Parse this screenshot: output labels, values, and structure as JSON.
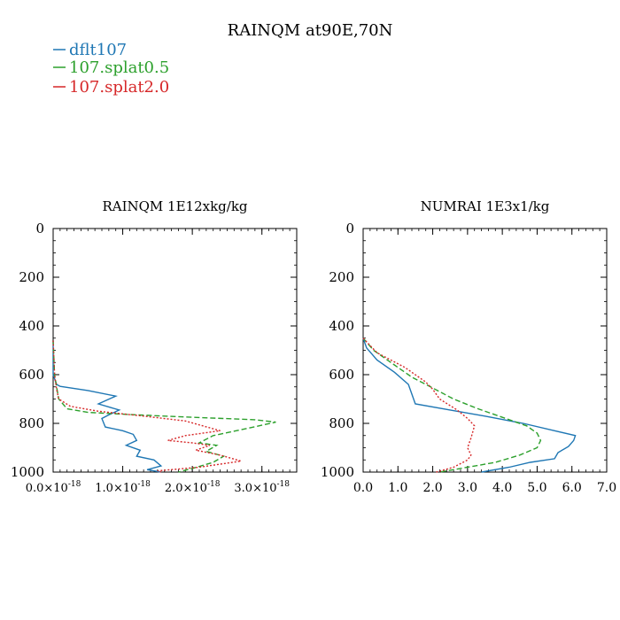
{
  "figure": {
    "title": "RAINQM at90E,70N"
  },
  "legend": [
    {
      "label": "dflt107",
      "color": "#1f77b4"
    },
    {
      "label": "107.splat0.5",
      "color": "#2ca02c"
    },
    {
      "label": "107.splat2.0",
      "color": "#d62728"
    }
  ],
  "chart_data": [
    {
      "type": "line",
      "title": "RAINQM  1E12xkg/kg",
      "xlim": [
        0.0,
        3.5
      ],
      "ylim": [
        0,
        1000
      ],
      "y_inverted": true,
      "xticks": [
        {
          "value": 0.0,
          "mant": "0.0",
          "base": "×10",
          "exp": "-18"
        },
        {
          "value": 1.0,
          "mant": "1.0",
          "base": "×10",
          "exp": "-18"
        },
        {
          "value": 2.0,
          "mant": "2.0",
          "base": "×10",
          "exp": "-18"
        },
        {
          "value": 3.0,
          "mant": "3.0",
          "base": "×10",
          "exp": "-18"
        }
      ],
      "yticks": [
        "0",
        "200",
        "400",
        "600",
        "800",
        "1000"
      ],
      "series": [
        {
          "name": "dflt107",
          "color": "#1f77b4",
          "dash": "solid",
          "points": [
            [
              0.0,
              460
            ],
            [
              0.0,
              600
            ],
            [
              0.05,
              640
            ],
            [
              0.1,
              648
            ],
            [
              0.5,
              665
            ],
            [
              0.9,
              688
            ],
            [
              0.65,
              720
            ],
            [
              0.95,
              745
            ],
            [
              0.8,
              765
            ],
            [
              0.7,
              780
            ],
            [
              0.75,
              815
            ],
            [
              1.0,
              830
            ],
            [
              1.15,
              845
            ],
            [
              1.2,
              870
            ],
            [
              1.05,
              890
            ],
            [
              1.25,
              910
            ],
            [
              1.2,
              935
            ],
            [
              1.45,
              950
            ],
            [
              1.55,
              975
            ],
            [
              1.35,
              990
            ],
            [
              1.55,
              1000
            ]
          ]
        },
        {
          "name": "107.splat0.5",
          "color": "#2ca02c",
          "dash": "dashed",
          "points": [
            [
              0.0,
              460
            ],
            [
              0.02,
              600
            ],
            [
              0.05,
              650
            ],
            [
              0.08,
              700
            ],
            [
              0.2,
              740
            ],
            [
              0.5,
              755
            ],
            [
              1.2,
              765
            ],
            [
              2.0,
              775
            ],
            [
              2.9,
              785
            ],
            [
              3.2,
              795
            ],
            [
              2.8,
              820
            ],
            [
              2.3,
              850
            ],
            [
              2.1,
              880
            ],
            [
              2.35,
              890
            ],
            [
              2.2,
              915
            ],
            [
              2.45,
              935
            ],
            [
              2.3,
              960
            ],
            [
              2.0,
              985
            ],
            [
              1.8,
              1000
            ]
          ]
        },
        {
          "name": "107.splat2.0",
          "color": "#d62728",
          "dash": "dotted",
          "points": [
            [
              0.0,
              460
            ],
            [
              0.02,
              600
            ],
            [
              0.05,
              660
            ],
            [
              0.08,
              700
            ],
            [
              0.25,
              730
            ],
            [
              0.65,
              750
            ],
            [
              1.3,
              770
            ],
            [
              1.9,
              790
            ],
            [
              2.4,
              830
            ],
            [
              1.9,
              850
            ],
            [
              1.65,
              870
            ],
            [
              2.0,
              880
            ],
            [
              2.25,
              890
            ],
            [
              2.05,
              910
            ],
            [
              2.4,
              930
            ],
            [
              2.7,
              955
            ],
            [
              2.1,
              980
            ],
            [
              1.5,
              995
            ],
            [
              1.55,
              1000
            ]
          ]
        }
      ]
    },
    {
      "type": "line",
      "title": "NUMRAI  1E3x1/kg",
      "xlim": [
        0.0,
        7.0
      ],
      "ylim": [
        0,
        1000
      ],
      "y_inverted": true,
      "xticks": [
        {
          "value": 0.0,
          "mant": "0.0"
        },
        {
          "value": 1.0,
          "mant": "1.0"
        },
        {
          "value": 2.0,
          "mant": "2.0"
        },
        {
          "value": 3.0,
          "mant": "3.0"
        },
        {
          "value": 4.0,
          "mant": "4.0"
        },
        {
          "value": 5.0,
          "mant": "5.0"
        },
        {
          "value": 6.0,
          "mant": "6.0"
        },
        {
          "value": 7.0,
          "mant": "7.0"
        }
      ],
      "yticks": [
        "0",
        "200",
        "400",
        "600",
        "800",
        "1000"
      ],
      "series": [
        {
          "name": "dflt107",
          "color": "#1f77b4",
          "dash": "solid",
          "points": [
            [
              0.0,
              450
            ],
            [
              0.1,
              490
            ],
            [
              0.4,
              540
            ],
            [
              0.9,
              590
            ],
            [
              1.3,
              640
            ],
            [
              1.4,
              680
            ],
            [
              1.5,
              720
            ],
            [
              2.5,
              745
            ],
            [
              3.5,
              770
            ],
            [
              4.6,
              800
            ],
            [
              5.5,
              830
            ],
            [
              6.1,
              850
            ],
            [
              6.05,
              870
            ],
            [
              5.9,
              895
            ],
            [
              5.6,
              920
            ],
            [
              5.5,
              945
            ],
            [
              4.8,
              960
            ],
            [
              4.2,
              980
            ],
            [
              3.4,
              1000
            ]
          ]
        },
        {
          "name": "107.splat0.5",
          "color": "#2ca02c",
          "dash": "dashed",
          "points": [
            [
              0.0,
              450
            ],
            [
              0.3,
              500
            ],
            [
              0.8,
              550
            ],
            [
              1.4,
              610
            ],
            [
              2.0,
              655
            ],
            [
              2.6,
              700
            ],
            [
              3.3,
              740
            ],
            [
              4.1,
              780
            ],
            [
              4.7,
              810
            ],
            [
              5.0,
              840
            ],
            [
              5.1,
              870
            ],
            [
              5.0,
              900
            ],
            [
              4.5,
              930
            ],
            [
              3.8,
              960
            ],
            [
              2.8,
              985
            ],
            [
              2.2,
              1000
            ]
          ]
        },
        {
          "name": "107.splat2.0",
          "color": "#d62728",
          "dash": "dotted",
          "points": [
            [
              0.0,
              450
            ],
            [
              0.4,
              510
            ],
            [
              1.2,
              570
            ],
            [
              1.8,
              630
            ],
            [
              2.0,
              660
            ],
            [
              2.2,
              700
            ],
            [
              2.7,
              745
            ],
            [
              3.0,
              780
            ],
            [
              3.2,
              810
            ],
            [
              3.1,
              860
            ],
            [
              3.0,
              900
            ],
            [
              3.1,
              930
            ],
            [
              3.0,
              950
            ],
            [
              2.6,
              980
            ],
            [
              2.1,
              1000
            ]
          ]
        }
      ]
    }
  ]
}
